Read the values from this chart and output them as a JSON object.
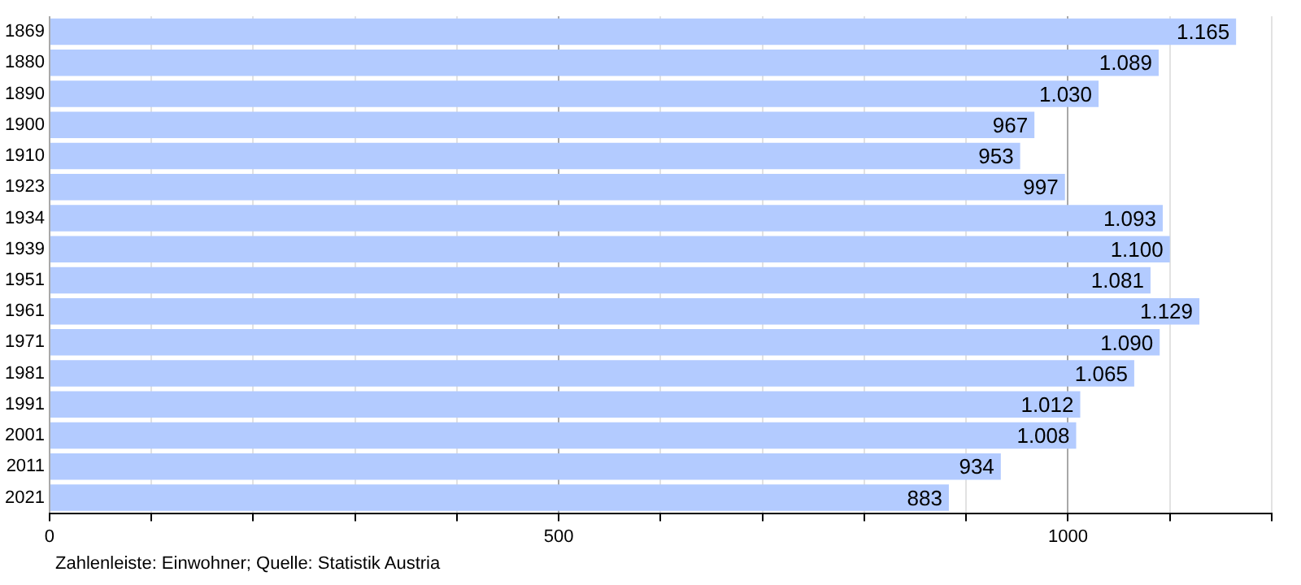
{
  "chart_data": {
    "type": "bar",
    "orientation": "horizontal",
    "categories": [
      "1869",
      "1880",
      "1890",
      "1900",
      "1910",
      "1923",
      "1934",
      "1939",
      "1951",
      "1961",
      "1971",
      "1981",
      "1991",
      "2001",
      "2011",
      "2021"
    ],
    "values": [
      1165,
      1089,
      1030,
      967,
      953,
      997,
      1093,
      1100,
      1081,
      1129,
      1090,
      1065,
      1012,
      1008,
      934,
      883
    ],
    "value_labels": [
      "1.165",
      "1.089",
      "1.030",
      "967",
      "953",
      "997",
      "1.093",
      "1.100",
      "1.081",
      "1.129",
      "1.090",
      "1.065",
      "1.012",
      "1.008",
      "934",
      "883"
    ],
    "color": "#b3cbff",
    "xlim": [
      0,
      1200
    ],
    "xticks": [
      0,
      {
        "value": 100,
        "label": null
      },
      {
        "value": 200,
        "label": null
      },
      {
        "value": 300,
        "label": null
      },
      {
        "value": 400,
        "label": null
      },
      500,
      {
        "value": 600,
        "label": null
      },
      {
        "value": 700,
        "label": null
      },
      {
        "value": 800,
        "label": null
      },
      {
        "value": 900,
        "label": null
      },
      1000,
      {
        "value": 1100,
        "label": null
      },
      {
        "value": 1200,
        "label": null
      }
    ],
    "grid": "x",
    "legend": false,
    "annotations": [
      "Zahlenleiste: Einwohner; Quelle: Statistik Austria"
    ]
  }
}
